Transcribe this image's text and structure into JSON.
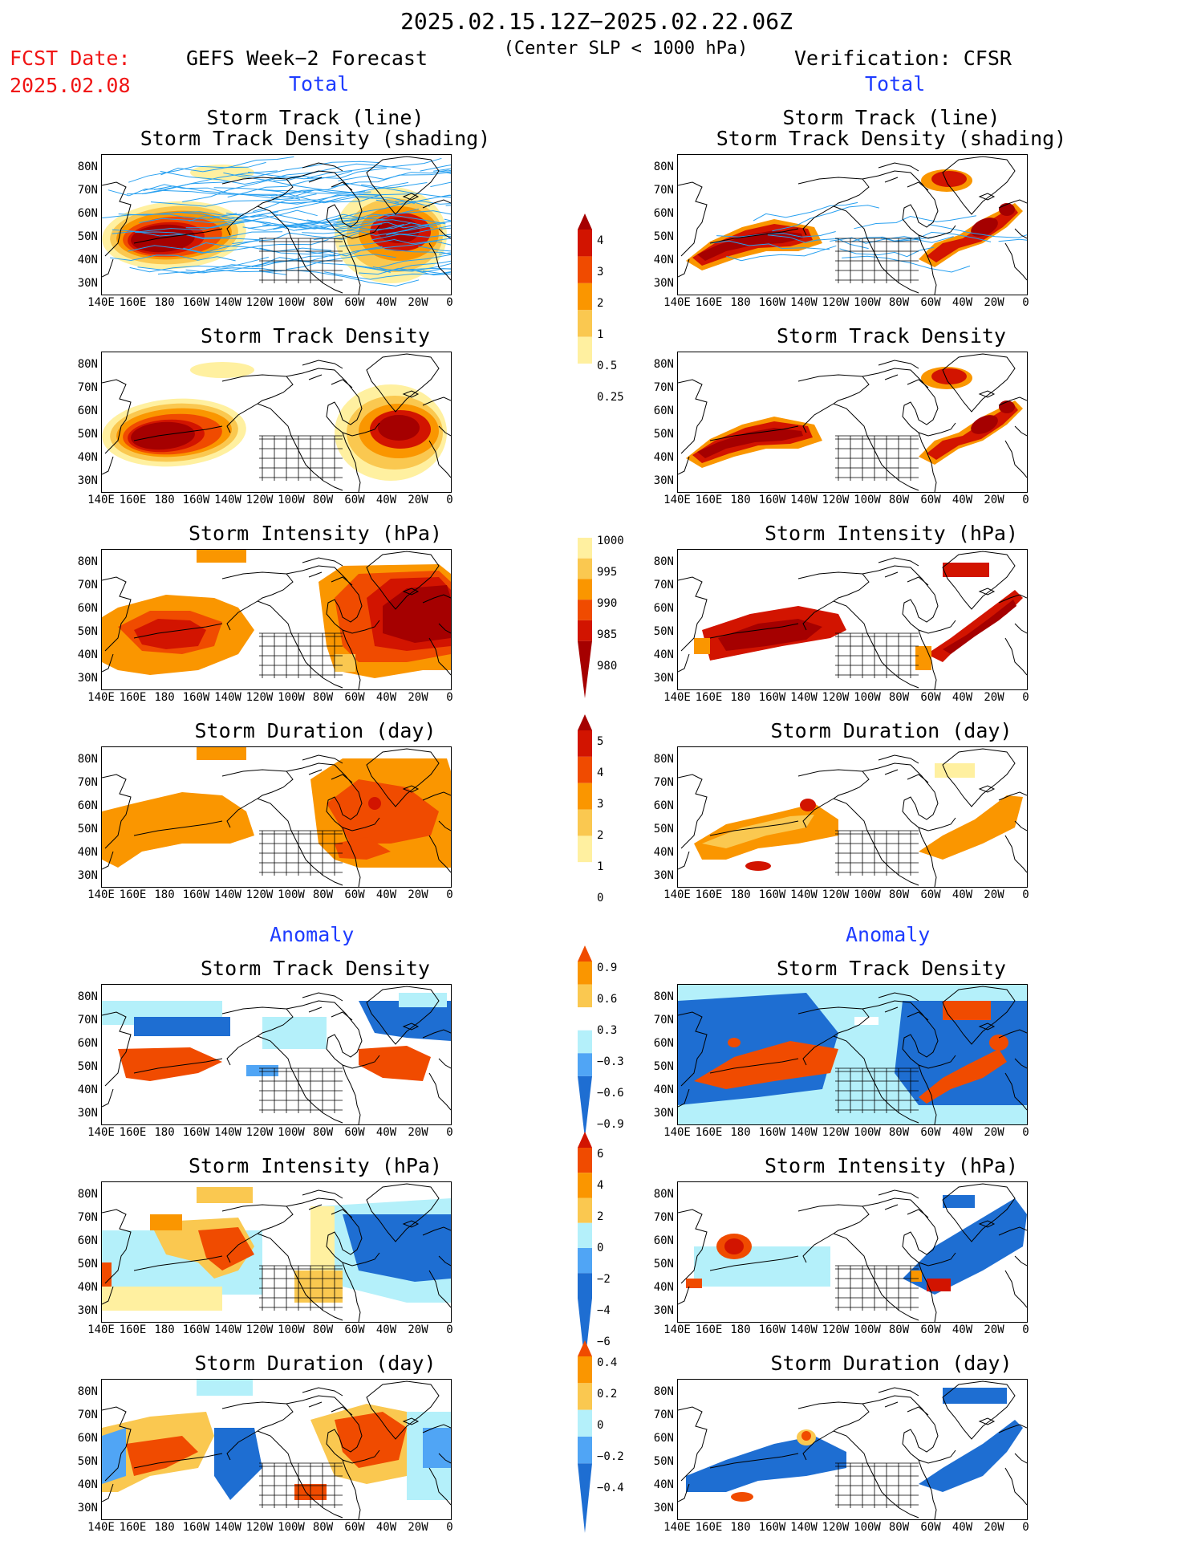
{
  "header": {
    "period": "2025.02.15.12Z−2025.02.22.06Z",
    "criterion": "(Center SLP < 1000 hPa)",
    "fcst_label": "FCST Date:",
    "fcst_date": "2025.02.08",
    "left_title": "GEFS Week−2 Forecast",
    "right_title": "Verification: CFSR",
    "total_label": "Total",
    "anomaly_label": "Anomaly"
  },
  "titles": {
    "track_line": "Storm Track (line)",
    "track_shading": "Storm Track Density (shading)",
    "density": "Storm Track Density",
    "intensity": "Storm Intensity (hPa)",
    "duration": "Storm Duration (day)"
  },
  "axes": {
    "lat_labels": [
      "80N",
      "70N",
      "60N",
      "50N",
      "40N",
      "30N"
    ],
    "lon_labels": [
      "140E",
      "160E",
      "180",
      "160W",
      "140W",
      "120W",
      "100W",
      "80W",
      "60W",
      "40W",
      "20W",
      "0"
    ]
  },
  "colorbars": {
    "density_total": [
      "4",
      "3",
      "2",
      "1",
      "0.5",
      "0.25"
    ],
    "intensity_total": [
      "1000",
      "995",
      "990",
      "985",
      "980"
    ],
    "duration_total": [
      "5",
      "4",
      "3",
      "2",
      "1",
      "0"
    ],
    "density_anom": [
      "0.9",
      "0.6",
      "0.3",
      "−0.3",
      "−0.6",
      "−0.9"
    ],
    "intensity_anom": [
      "6",
      "4",
      "2",
      "0",
      "−2",
      "−4",
      "−6"
    ],
    "duration_anom": [
      "0.4",
      "0.2",
      "0",
      "−0.2",
      "−0.4"
    ]
  },
  "colors": {
    "dark_red": "#a50000",
    "red": "#d21400",
    "orange_red": "#f04b00",
    "orange": "#fa9600",
    "light_orange": "#fac850",
    "pale_yellow": "#fff0a0",
    "light_blue": "#b4f0fa",
    "mid_blue": "#50a5f5",
    "dark_blue": "#1e6ed2",
    "track_blue": "#28a0f0"
  }
}
